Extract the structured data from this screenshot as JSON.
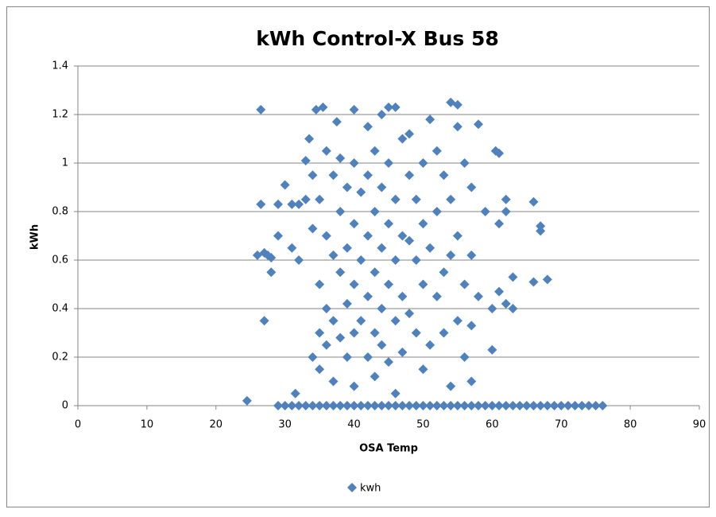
{
  "chart_data": {
    "type": "scatter",
    "title": "kWh Control-X Bus 58",
    "x_label": "OSA Temp",
    "y_label": "kWh",
    "x": [
      26.5,
      26.5,
      26,
      27,
      27.5,
      28,
      28,
      27,
      29,
      29,
      30,
      31,
      31.5,
      31,
      32,
      32,
      33,
      33,
      33.5,
      34,
      34,
      34,
      34.5,
      35,
      35,
      35,
      35,
      35.5,
      36,
      36,
      36,
      36,
      37,
      37,
      37,
      37,
      37.5,
      38,
      38,
      38,
      38,
      39,
      39,
      39,
      39,
      40,
      40,
      40,
      40,
      40,
      40,
      41,
      41,
      41,
      42,
      42,
      42,
      42,
      42,
      43,
      43,
      43,
      43,
      43,
      44,
      44,
      44,
      44,
      44,
      45,
      45,
      45,
      45,
      45,
      46,
      46,
      46,
      46,
      46,
      47,
      47,
      47,
      47,
      48,
      48,
      48,
      48,
      49,
      49,
      49,
      50,
      50,
      50,
      50,
      51,
      51,
      51,
      52,
      52,
      52,
      53,
      53,
      53,
      54,
      54,
      54,
      54,
      55,
      55,
      55,
      55,
      56,
      56,
      56,
      57,
      57,
      57,
      57,
      58,
      58,
      59,
      60,
      60,
      60.5,
      61,
      61,
      61,
      62,
      62,
      62,
      63,
      63,
      66,
      66,
      67,
      67,
      68,
      24.5,
      29,
      30,
      31,
      32,
      33,
      34,
      35,
      36,
      37,
      38,
      39,
      40,
      41,
      42,
      43,
      44,
      45,
      46,
      47,
      48,
      49,
      50,
      51,
      52,
      53,
      54,
      55,
      56,
      57,
      58,
      59,
      60,
      61,
      62,
      63,
      64,
      65,
      66,
      67,
      68,
      69,
      70,
      71,
      72,
      73,
      74,
      75,
      76
    ],
    "series": [
      {
        "name": "kwh",
        "color": "#4f81bd",
        "values": [
          1.22,
          0.83,
          0.62,
          0.63,
          0.62,
          0.61,
          0.55,
          0.35,
          0.83,
          0.7,
          0.91,
          0.65,
          0.05,
          0.83,
          0.83,
          0.6,
          0.85,
          1.01,
          1.1,
          0.95,
          0.73,
          0.2,
          1.22,
          0.85,
          0.5,
          0.3,
          0.15,
          1.23,
          1.05,
          0.7,
          0.4,
          0.25,
          0.95,
          0.62,
          0.35,
          0.1,
          1.17,
          1.02,
          0.8,
          0.55,
          0.28,
          0.9,
          0.65,
          0.42,
          0.2,
          1.22,
          1.0,
          0.75,
          0.5,
          0.3,
          0.08,
          0.88,
          0.6,
          0.35,
          1.15,
          0.95,
          0.7,
          0.45,
          0.2,
          1.05,
          0.8,
          0.55,
          0.3,
          0.12,
          1.2,
          0.9,
          0.65,
          0.4,
          0.25,
          1.23,
          1.0,
          0.75,
          0.5,
          0.18,
          1.23,
          0.85,
          0.6,
          0.35,
          0.05,
          1.1,
          0.7,
          0.45,
          0.22,
          1.12,
          0.95,
          0.68,
          0.38,
          0.85,
          0.6,
          0.3,
          1.0,
          0.75,
          0.5,
          0.15,
          1.18,
          0.65,
          0.25,
          1.05,
          0.8,
          0.45,
          0.95,
          0.55,
          0.3,
          1.25,
          0.85,
          0.62,
          0.08,
          1.24,
          1.15,
          0.7,
          0.35,
          1.0,
          0.5,
          0.2,
          0.9,
          0.62,
          0.33,
          0.1,
          1.16,
          0.45,
          0.8,
          0.4,
          0.23,
          1.05,
          1.04,
          0.47,
          0.75,
          0.85,
          0.8,
          0.42,
          0.53,
          0.4,
          0.84,
          0.51,
          0.74,
          0.72,
          0.52,
          0.02,
          0,
          0,
          0,
          0,
          0,
          0,
          0,
          0,
          0,
          0,
          0,
          0,
          0,
          0,
          0,
          0,
          0,
          0,
          0,
          0,
          0,
          0,
          0,
          0,
          0,
          0,
          0,
          0,
          0,
          0,
          0,
          0,
          0,
          0,
          0,
          0,
          0,
          0,
          0,
          0,
          0,
          0,
          0,
          0,
          0,
          0,
          0,
          0
        ]
      }
    ],
    "xlim": [
      0,
      90
    ],
    "xticks": [
      0,
      10,
      20,
      30,
      40,
      50,
      60,
      70,
      80,
      90
    ],
    "ylim": [
      0,
      1.4
    ],
    "yticks": [
      0,
      0.2,
      0.4,
      0.6,
      0.8,
      1,
      1.2,
      1.4
    ],
    "grid": true,
    "legend": "bottom"
  }
}
